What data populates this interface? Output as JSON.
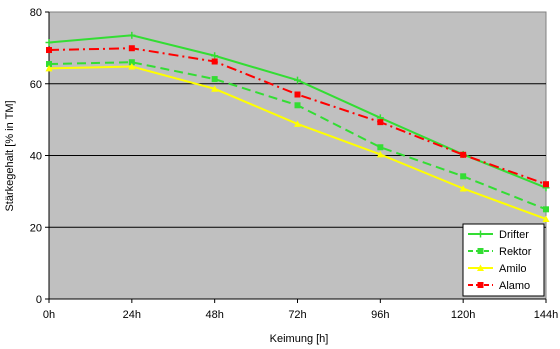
{
  "chart_data": {
    "type": "line",
    "title": "",
    "xlabel": "Keimung [h]",
    "ylabel": "Stärkegehalt [% in TM]",
    "categories": [
      "0h",
      "24h",
      "48h",
      "72h",
      "96h",
      "120h",
      "144h"
    ],
    "ylim": [
      0,
      80
    ],
    "yticks": [
      0,
      20,
      40,
      60,
      80
    ],
    "grid": true,
    "legend_position": "bottom-right",
    "plot_background": "#c0c0c0",
    "series": [
      {
        "name": "Drifter",
        "values": [
          71.5,
          73.5,
          67.8,
          61.0,
          50.5,
          40.3,
          31.0
        ],
        "color": "#33dd33",
        "dash": "solid",
        "marker": "plus"
      },
      {
        "name": "Rektor",
        "values": [
          65.5,
          66.0,
          61.3,
          54.0,
          42.3,
          34.2,
          25.0
        ],
        "color": "#33dd33",
        "dash": "dash",
        "marker": "square"
      },
      {
        "name": "Amilo",
        "values": [
          64.3,
          64.8,
          58.6,
          48.8,
          40.3,
          30.8,
          22.3
        ],
        "color": "#ffff00",
        "dash": "solid",
        "marker": "triangle"
      },
      {
        "name": "Alamo",
        "values": [
          69.4,
          69.9,
          66.2,
          57.0,
          49.3,
          40.2,
          32.0
        ],
        "color": "#ff0000",
        "dash": "dashdot",
        "marker": "square"
      }
    ]
  }
}
